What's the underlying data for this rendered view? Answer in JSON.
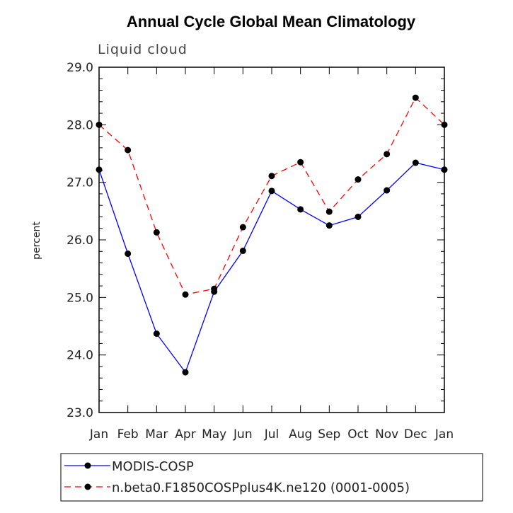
{
  "chart_data": {
    "type": "line",
    "title": "Annual Cycle Global Mean Climatology",
    "subtitle": "Liquid cloud",
    "xlabel": "",
    "ylabel": "percent",
    "categories": [
      "Jan",
      "Feb",
      "Mar",
      "Apr",
      "May",
      "Jun",
      "Jul",
      "Aug",
      "Sep",
      "Oct",
      "Nov",
      "Dec",
      "Jan"
    ],
    "ylim": [
      23.0,
      29.0
    ],
    "yticks": [
      "23.0",
      "24.0",
      "25.0",
      "26.0",
      "27.0",
      "28.0",
      "29.0"
    ],
    "series": [
      {
        "name": "MODIS-COSP",
        "color": "#0000ff",
        "dash": "solid",
        "values": [
          27.22,
          25.76,
          24.37,
          23.7,
          25.1,
          25.81,
          26.85,
          26.53,
          26.25,
          26.4,
          26.86,
          27.34,
          27.22
        ]
      },
      {
        "name": "n.beta0.F1850COSPplus4K.ne120 (0001-0005)",
        "color": "#ff0000",
        "dash": "dashed",
        "values": [
          28.0,
          27.56,
          26.13,
          25.05,
          25.15,
          26.22,
          27.11,
          27.35,
          26.49,
          27.05,
          27.49,
          28.47,
          28.0
        ]
      }
    ],
    "legend": {
      "position": "bottom",
      "entries": [
        "MODIS-COSP",
        "n.beta0.F1850COSPplus4K.ne120 (0001-0005)"
      ]
    }
  }
}
